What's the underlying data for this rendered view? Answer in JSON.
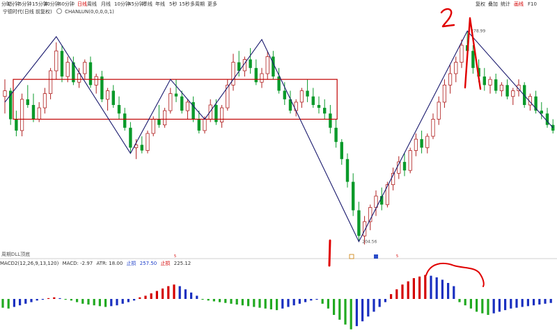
{
  "toolbar": {
    "left_items": [
      "分时",
      "1分钟",
      "5分钟",
      "15分钟",
      "30分钟",
      "60分钟",
      "日线",
      "周线",
      "月线",
      "10分钟",
      "45分钟",
      "季线",
      "年线",
      "5秒",
      "15秒",
      "多周期",
      "更多"
    ],
    "active_index": 6,
    "right_items": [
      "复权",
      "叠加",
      "统计",
      "画线",
      "F10"
    ],
    "right_active_index": 3
  },
  "subtitle": {
    "stock_label": "宁德时代(日线 前复权)",
    "indicator_label": "CHANLUN(0,0,0,0,1)"
  },
  "main_bottom_label": "周期DLL顶底",
  "macd_header": {
    "name": "MACD2(12,26,9,13,120)",
    "macd": "MACD: -2.97",
    "atr": "ATR: 18.00",
    "stop1": "止损",
    "stop1_val": "257.50",
    "stop2": "止损",
    "stop2_val": "225.12"
  },
  "colors": {
    "up": "#d40000",
    "down": "#0a9a2a",
    "stroke": "#1a1a6e",
    "box": "#c00000",
    "macd_red": "#d40000",
    "macd_blue": "#1a30c0",
    "macd_green": "#22aa22",
    "annotation": "#e00000"
  },
  "chart_data": {
    "type": "candlestick",
    "price_labels": {
      "high": "278.99",
      "low": "204.56"
    },
    "high_value": 278.99,
    "low_value": 204.56,
    "annotations": [
      "1",
      "2"
    ],
    "candles": [
      [
        0,
        256,
        262,
        250,
        258
      ],
      [
        1,
        258,
        259,
        246,
        248
      ],
      [
        2,
        248,
        251,
        242,
        244
      ],
      [
        3,
        244,
        257,
        242,
        255
      ],
      [
        4,
        255,
        260,
        252,
        253
      ],
      [
        5,
        253,
        257,
        247,
        248
      ],
      [
        6,
        248,
        254,
        247,
        252
      ],
      [
        7,
        252,
        259,
        250,
        257
      ],
      [
        8,
        257,
        266,
        255,
        265
      ],
      [
        9,
        265,
        275,
        262,
        272
      ],
      [
        10,
        272,
        274,
        261,
        263
      ],
      [
        11,
        263,
        270,
        261,
        268
      ],
      [
        12,
        268,
        270,
        260,
        261
      ],
      [
        13,
        261,
        266,
        259,
        264
      ],
      [
        14,
        264,
        269,
        262,
        268
      ],
      [
        15,
        268,
        270,
        259,
        260
      ],
      [
        16,
        260,
        264,
        257,
        263
      ],
      [
        17,
        263,
        265,
        254,
        255
      ],
      [
        18,
        255,
        259,
        251,
        258
      ],
      [
        19,
        258,
        260,
        252,
        253
      ],
      [
        20,
        253,
        256,
        248,
        250
      ],
      [
        21,
        250,
        252,
        244,
        245
      ],
      [
        22,
        245,
        247,
        236,
        238
      ],
      [
        23,
        238,
        241,
        234,
        239
      ],
      [
        24,
        239,
        242,
        236,
        237
      ],
      [
        25,
        237,
        244,
        236,
        243
      ],
      [
        26,
        243,
        249,
        242,
        248
      ],
      [
        27,
        248,
        253,
        245,
        246
      ],
      [
        28,
        246,
        252,
        245,
        251
      ],
      [
        29,
        251,
        259,
        250,
        257
      ],
      [
        30,
        257,
        262,
        254,
        256
      ],
      [
        31,
        256,
        258,
        250,
        251
      ],
      [
        32,
        251,
        255,
        248,
        254
      ],
      [
        33,
        254,
        256,
        247,
        248
      ],
      [
        34,
        248,
        251,
        243,
        244
      ],
      [
        35,
        244,
        249,
        243,
        248
      ],
      [
        36,
        248,
        255,
        247,
        253
      ],
      [
        37,
        253,
        255,
        246,
        247
      ],
      [
        38,
        247,
        253,
        245,
        252
      ],
      [
        39,
        252,
        262,
        251,
        260
      ],
      [
        40,
        260,
        271,
        258,
        268
      ],
      [
        41,
        268,
        272,
        263,
        265
      ],
      [
        42,
        265,
        270,
        263,
        269
      ],
      [
        43,
        269,
        273,
        264,
        266
      ],
      [
        44,
        266,
        269,
        260,
        261
      ],
      [
        45,
        261,
        266,
        259,
        264
      ],
      [
        46,
        264,
        272,
        262,
        270
      ],
      [
        47,
        270,
        272,
        262,
        263
      ],
      [
        48,
        263,
        266,
        257,
        258
      ],
      [
        49,
        258,
        261,
        253,
        255
      ],
      [
        50,
        255,
        258,
        250,
        251
      ],
      [
        51,
        251,
        255,
        249,
        254
      ],
      [
        52,
        254,
        259,
        252,
        258
      ],
      [
        53,
        258,
        262,
        254,
        256
      ],
      [
        54,
        256,
        259,
        252,
        253
      ],
      [
        55,
        253,
        256,
        250,
        252
      ],
      [
        56,
        252,
        255,
        248,
        250
      ],
      [
        57,
        250,
        253,
        243,
        245
      ],
      [
        58,
        245,
        248,
        238,
        240
      ],
      [
        59,
        240,
        241,
        232,
        234
      ],
      [
        60,
        234,
        236,
        224,
        226
      ],
      [
        61,
        226,
        229,
        214,
        216
      ],
      [
        62,
        216,
        219,
        205,
        207
      ],
      [
        63,
        207,
        214,
        204,
        212
      ],
      [
        64,
        212,
        218,
        209,
        217
      ],
      [
        65,
        217,
        223,
        214,
        221
      ],
      [
        66,
        221,
        224,
        216,
        218
      ],
      [
        67,
        218,
        226,
        217,
        225
      ],
      [
        68,
        225,
        231,
        223,
        229
      ],
      [
        69,
        229,
        235,
        227,
        233
      ],
      [
        70,
        233,
        236,
        228,
        230
      ],
      [
        71,
        230,
        238,
        229,
        237
      ],
      [
        72,
        237,
        243,
        235,
        241
      ],
      [
        73,
        241,
        244,
        236,
        238
      ],
      [
        74,
        238,
        243,
        236,
        242
      ],
      [
        75,
        242,
        250,
        241,
        248
      ],
      [
        76,
        248,
        256,
        246,
        254
      ],
      [
        77,
        254,
        262,
        252,
        260
      ],
      [
        78,
        260,
        267,
        257,
        264
      ],
      [
        79,
        264,
        270,
        261,
        268
      ],
      [
        80,
        268,
        276,
        266,
        274
      ],
      [
        81,
        274,
        279,
        270,
        272
      ],
      [
        82,
        272,
        274,
        264,
        266
      ],
      [
        83,
        266,
        269,
        261,
        263
      ],
      [
        84,
        263,
        266,
        258,
        260
      ],
      [
        85,
        260,
        263,
        257,
        262
      ],
      [
        86,
        262,
        264,
        257,
        258
      ],
      [
        87,
        258,
        261,
        256,
        260
      ],
      [
        88,
        260,
        262,
        255,
        256
      ],
      [
        89,
        256,
        259,
        253,
        258
      ],
      [
        90,
        258,
        262,
        256,
        260
      ],
      [
        91,
        260,
        261,
        252,
        253
      ],
      [
        92,
        253,
        257,
        251,
        256
      ],
      [
        93,
        256,
        258,
        250,
        251
      ],
      [
        94,
        251,
        254,
        248,
        250
      ],
      [
        95,
        250,
        252,
        245,
        246
      ],
      [
        96,
        246,
        248,
        243,
        244
      ]
    ],
    "strokes": [
      [
        0,
        254
      ],
      [
        9,
        277
      ],
      [
        22,
        236
      ],
      [
        29,
        262
      ],
      [
        35,
        248
      ],
      [
        45,
        276
      ],
      [
        62,
        205
      ],
      [
        81,
        279
      ],
      [
        96,
        245
      ]
    ],
    "box": {
      "i_start": 0,
      "i_end": 56,
      "top": 262,
      "bottom": 248
    },
    "ylim": [
      200,
      285
    ],
    "macd_hist": [
      -0.55,
      -0.6,
      -0.5,
      -0.4,
      -0.3,
      -0.2,
      -0.1,
      -0.05,
      0.05,
      0.1,
      0.05,
      -0.05,
      -0.1,
      -0.2,
      -0.3,
      -0.35,
      -0.4,
      -0.45,
      -0.5,
      -0.45,
      -0.4,
      -0.3,
      -0.2,
      -0.1,
      0.1,
      0.2,
      0.35,
      0.5,
      0.65,
      0.8,
      0.9,
      0.8,
      0.6,
      0.4,
      0.2,
      -0.05,
      -0.1,
      -0.15,
      -0.2,
      -0.25,
      -0.3,
      -0.35,
      -0.4,
      -0.45,
      -0.5,
      -0.55,
      -0.6,
      -0.65,
      -0.7,
      -0.6,
      -0.5,
      -0.4,
      -0.3,
      -0.2,
      -0.1,
      -0.05,
      -0.3,
      -0.6,
      -1.0,
      -1.3,
      -1.6,
      -1.9,
      -1.7,
      -1.4,
      -1.1,
      -0.8,
      -0.5,
      -0.2,
      0.3,
      0.6,
      0.9,
      1.1,
      1.3,
      1.4,
      1.5,
      1.45,
      1.35,
      1.2,
      1.0,
      0.8,
      -0.2,
      -0.4,
      -0.6,
      -0.8,
      -0.9,
      -1.0,
      -0.9,
      -0.8,
      -0.7,
      -0.6,
      -0.55,
      -0.5,
      -0.45,
      -0.4,
      -0.35,
      -0.3,
      -0.25
    ],
    "macd_ylim": [
      -2,
      2
    ],
    "day_markers": [
      "5",
      "5",
      "5"
    ]
  }
}
